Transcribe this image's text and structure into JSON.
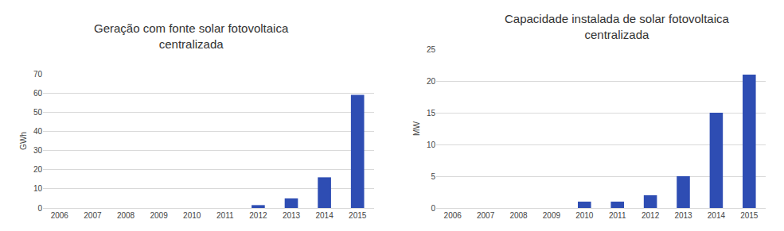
{
  "chart_data": [
    {
      "type": "bar",
      "title": "Geração com fonte solar fotovoltaica centralizada",
      "y_label": "GWh",
      "categories": [
        "2006",
        "2007",
        "2008",
        "2009",
        "2010",
        "2011",
        "2012",
        "2013",
        "2014",
        "2015"
      ],
      "values": [
        0,
        0,
        0,
        0,
        0,
        0,
        1.5,
        5,
        16,
        59
      ],
      "color": "#2e4db3",
      "ylim": [
        0,
        70
      ],
      "yticks": [
        0,
        10,
        20,
        30,
        40,
        50,
        60,
        70
      ],
      "grid": true
    },
    {
      "type": "bar",
      "title": "Capacidade instalada de solar fotovoltaica centralizada",
      "y_label": "MW",
      "categories": [
        "2006",
        "2007",
        "2008",
        "2009",
        "2010",
        "2011",
        "2012",
        "2013",
        "2014",
        "2015"
      ],
      "values": [
        0,
        0,
        0,
        0,
        1,
        1,
        2,
        5,
        15,
        21
      ],
      "color": "#2e4db3",
      "ylim": [
        0,
        25
      ],
      "yticks": [
        0,
        5,
        10,
        15,
        20,
        25
      ],
      "grid": true
    }
  ]
}
